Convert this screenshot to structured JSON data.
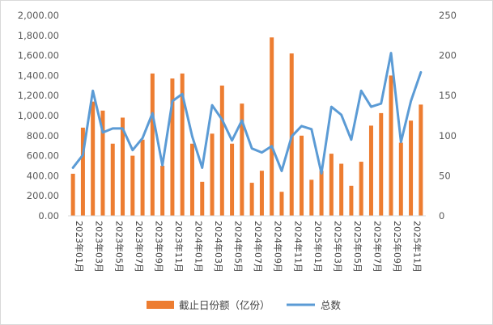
{
  "chart_data": {
    "type": "bar",
    "colors": {
      "bar": "#ED7D31",
      "line": "#5B9BD5",
      "tick_text": "#595959"
    },
    "x": [
      "2023年01月",
      "2023年02月",
      "2023年03月",
      "2023年04月",
      "2023年05月",
      "2023年06月",
      "2023年07月",
      "2023年08月",
      "2023年09月",
      "2023年10月",
      "2023年11月",
      "2023年12月",
      "2024年01月",
      "2024年02月",
      "2024年03月",
      "2024年04月",
      "2024年05月",
      "2024年06月",
      "2024年07月",
      "2024年08月",
      "2024年09月",
      "2024年10月",
      "2024年11月",
      "2024年12月",
      "2025年01月",
      "2025年02月",
      "2025年03月",
      "2025年04月",
      "2025年05月",
      "2025年06月",
      "2025年07月",
      "2025年08月",
      "2025年09月",
      "2025年10月",
      "2025年11月",
      "2025年12月"
    ],
    "x_tick_labels": [
      "2023年01月",
      "2023年03月",
      "2023年05月",
      "2023年07月",
      "2023年09月",
      "2023年11月",
      "2024年01月",
      "2024年03月",
      "2024年05月",
      "2024年07月",
      "2024年09月",
      "2024年11月",
      "2025年01月",
      "2025年03月",
      "2025年05月",
      "2025年07月",
      "2025年09月",
      "2025年11月"
    ],
    "y_left": {
      "range": [
        0,
        2000
      ],
      "ticks": [
        "0.00",
        "200.00",
        "400.00",
        "600.00",
        "800.00",
        "1,000.00",
        "1,200.00",
        "1,400.00",
        "1,600.00",
        "1,800.00",
        "2,000.00"
      ]
    },
    "y_right": {
      "range": [
        0,
        250
      ],
      "ticks": [
        "0",
        "50",
        "100",
        "150",
        "200",
        "250"
      ]
    },
    "grid": false,
    "legend_position": "bottom",
    "series": [
      {
        "name": "截止日份额（亿份）",
        "type": "bar",
        "axis": "left",
        "values": [
          420,
          880,
          1140,
          1050,
          720,
          980,
          600,
          760,
          1420,
          500,
          1370,
          1420,
          720,
          340,
          820,
          1300,
          720,
          1120,
          330,
          450,
          1780,
          240,
          1620,
          800,
          360,
          450,
          620,
          520,
          300,
          540,
          900,
          1025,
          1400,
          730,
          950,
          1110
        ]
      },
      {
        "name": "总数",
        "type": "line",
        "axis": "right",
        "values": [
          60,
          76,
          156,
          104,
          109,
          109,
          82,
          97,
          128,
          63,
          143,
          152,
          99,
          60,
          138,
          120,
          94,
          119,
          84,
          79,
          87,
          56,
          99,
          112,
          108,
          53,
          136,
          126,
          95,
          156,
          136,
          140,
          203,
          92,
          143,
          179
        ]
      }
    ]
  }
}
